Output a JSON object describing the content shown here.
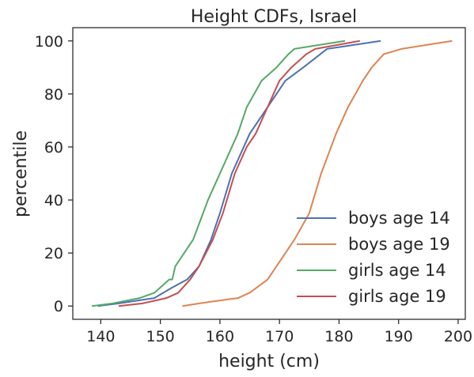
{
  "chart_data": {
    "type": "line",
    "title": "Height CDFs, Israel",
    "xlabel": "height (cm)",
    "ylabel": "percentile",
    "xlim": [
      135.3,
      201.2
    ],
    "ylim": [
      -5,
      105
    ],
    "xticks": [
      140,
      150,
      160,
      170,
      180,
      190,
      200
    ],
    "yticks": [
      0,
      20,
      40,
      60,
      80,
      100
    ],
    "grid": false,
    "legend_position": "lower-right",
    "series": [
      {
        "name": "boys age 14",
        "color": "#4c72b0",
        "points": [
          [
            139.5,
            0
          ],
          [
            143,
            1
          ],
          [
            149,
            3
          ],
          [
            152,
            7
          ],
          [
            154.5,
            10
          ],
          [
            156.5,
            15
          ],
          [
            158.5,
            25
          ],
          [
            160,
            35
          ],
          [
            162,
            50
          ],
          [
            165,
            65
          ],
          [
            168,
            75
          ],
          [
            171,
            85
          ],
          [
            174,
            90
          ],
          [
            178,
            97
          ],
          [
            187,
            100
          ]
        ]
      },
      {
        "name": "boys age 19",
        "color": "#dd8452",
        "points": [
          [
            153.7,
            0
          ],
          [
            158,
            1.5
          ],
          [
            163,
            3
          ],
          [
            165,
            5
          ],
          [
            168,
            10
          ],
          [
            169.5,
            15
          ],
          [
            172.5,
            25
          ],
          [
            175,
            35
          ],
          [
            177,
            50
          ],
          [
            179.5,
            65
          ],
          [
            181.5,
            75
          ],
          [
            184,
            85
          ],
          [
            185.5,
            90
          ],
          [
            187.5,
            95
          ],
          [
            190.5,
            97
          ],
          [
            199,
            100
          ]
        ]
      },
      {
        "name": "girls age 14",
        "color": "#55a868",
        "points": [
          [
            138.5,
            0
          ],
          [
            142,
            1
          ],
          [
            146.5,
            3
          ],
          [
            149,
            5
          ],
          [
            151.5,
            10
          ],
          [
            152,
            10
          ],
          [
            152.5,
            15
          ],
          [
            155.5,
            25
          ],
          [
            158,
            40
          ],
          [
            161,
            55
          ],
          [
            163,
            65
          ],
          [
            164.5,
            75
          ],
          [
            167,
            85
          ],
          [
            169.5,
            90
          ],
          [
            171.5,
            95
          ],
          [
            172.5,
            97
          ],
          [
            181,
            100
          ]
        ]
      },
      {
        "name": "girls age 19",
        "color": "#c44e52",
        "points": [
          [
            143,
            0
          ],
          [
            147,
            1
          ],
          [
            151,
            3
          ],
          [
            153,
            5
          ],
          [
            155,
            10
          ],
          [
            156.5,
            15
          ],
          [
            158.8,
            25
          ],
          [
            160.5,
            35
          ],
          [
            162.5,
            50
          ],
          [
            164.5,
            60
          ],
          [
            166,
            65
          ],
          [
            168,
            75
          ],
          [
            170,
            85
          ],
          [
            172,
            90
          ],
          [
            174.5,
            95
          ],
          [
            176,
            97
          ],
          [
            183.5,
            100
          ]
        ]
      }
    ]
  }
}
